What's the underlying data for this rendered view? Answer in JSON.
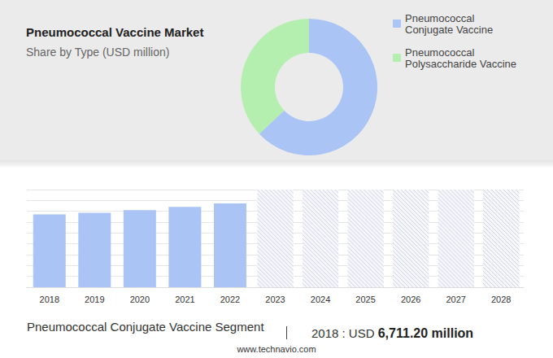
{
  "chart_data": [
    {
      "type": "donut",
      "title": "Pneumococcal Vaccine Market",
      "subtitle": "Share by Type (USD million)",
      "categories": [
        "Pneumococcal Conjugate Vaccine",
        "Pneumococcal Polysaccharide Vaccine"
      ],
      "values": [
        63,
        37
      ],
      "colors": [
        "#a9c4f5",
        "#b5efb0"
      ],
      "legend": "upper right",
      "data_labels": false
    },
    {
      "type": "bar",
      "categories": [
        "2018",
        "2019",
        "2020",
        "2021",
        "2022",
        "2023",
        "2024",
        "2025",
        "2026",
        "2027",
        "2028"
      ],
      "values": [
        6711.2,
        6867,
        7100,
        7413,
        7725,
        null,
        null,
        null,
        null,
        null,
        null
      ],
      "color": "#a9c4f5",
      "ylim": [
        0,
        9000
      ],
      "yticks": [
        0,
        1000,
        2000,
        3000,
        4000,
        5000,
        6000,
        7000,
        8000,
        9000
      ],
      "grid": true,
      "tick_labels": "x",
      "data_labels": false
    }
  ],
  "footer": {
    "text": "Pneumococcal Conjugate Vaccine Segment",
    "highlight": "2018 : USD",
    "highlight_value": "6,711.20 million",
    "source": "www.technavio.com"
  }
}
